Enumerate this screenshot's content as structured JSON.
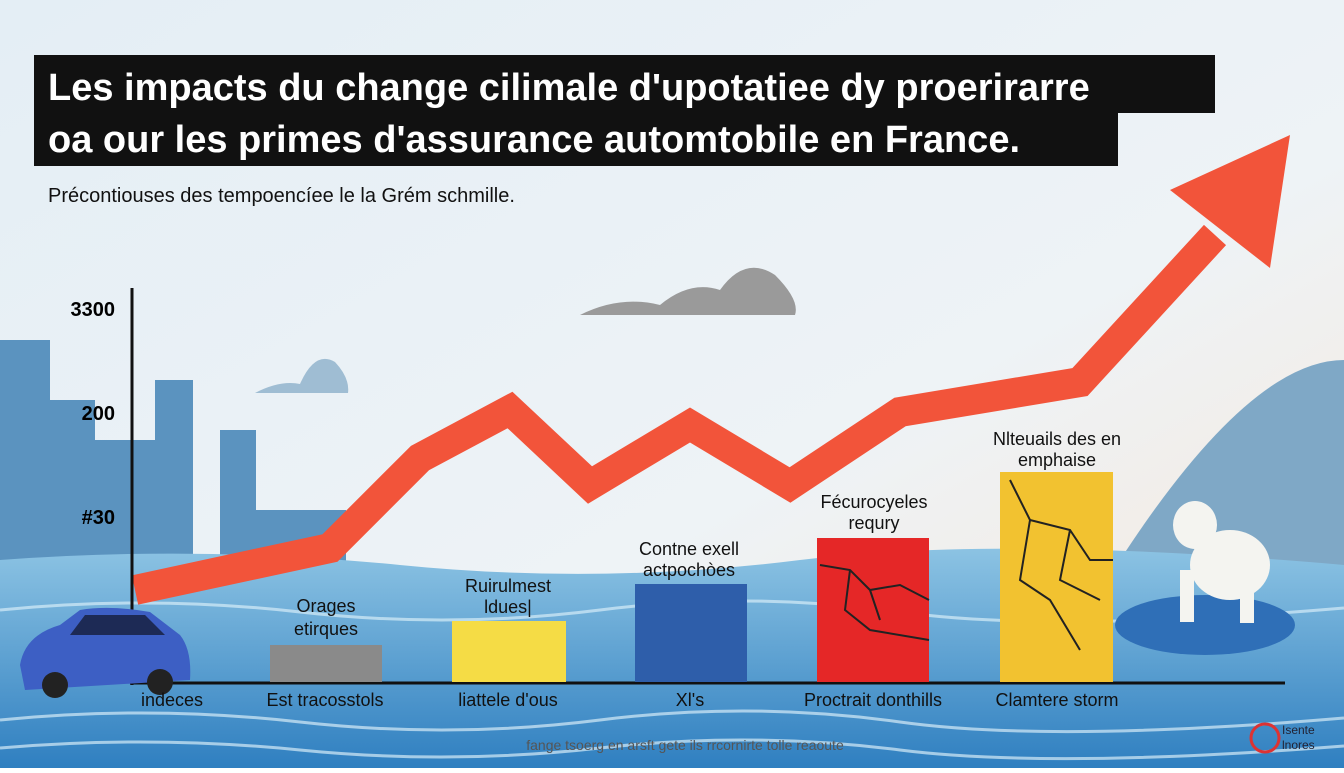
{
  "header": {
    "title_lines": [
      "Les impacts du change cilimale d'upotatiee dy proerirarre",
      "oa our les primes d'assurance automtobile en France."
    ],
    "subtitle": "Précontiouses des tempoencíee le la Grém schmille."
  },
  "axis_labels": [
    "3300",
    "200",
    "#30"
  ],
  "bars": [
    {
      "label_lines": [
        "Orages",
        "etirques"
      ]
    },
    {
      "label_lines": [
        "Ruirulmest",
        "ldues|"
      ]
    },
    {
      "label_lines": [
        "Contne exell",
        "actpochòes"
      ]
    },
    {
      "label_lines": [
        "Fécurocyeles",
        "requry"
      ]
    },
    {
      "label_lines": [
        "Nlteuails des en",
        "emphaise"
      ]
    }
  ],
  "categories": [
    "indeces",
    "Est tracosstols",
    "liattele d'ous",
    "Xl's",
    "Proctrait donthills",
    "Clamtere storm"
  ],
  "footer": "fange tsoerg en arsft gete ils rrcornirte tolle reaoute",
  "logo_lines": [
    "Isente",
    "lnores"
  ]
}
